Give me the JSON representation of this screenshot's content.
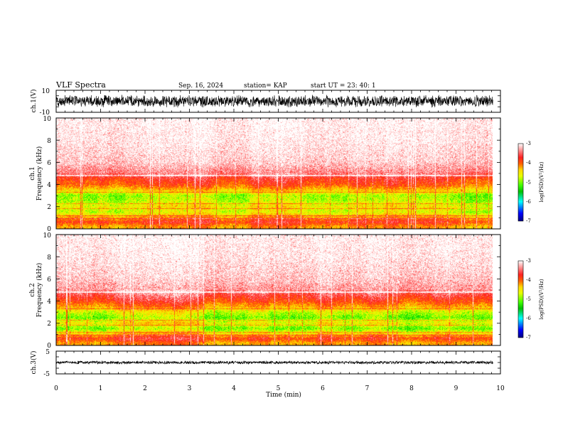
{
  "header": {
    "title": "VLF Spectra",
    "date": "Sep. 16, 2024",
    "station": "station= KAP",
    "start": "start  UT =  23: 40: 1"
  },
  "colors": {
    "spectrum": [
      "#ffffff",
      "#ff9a9a",
      "#ff2020",
      "#ff6000",
      "#ffd800",
      "#e8ff00",
      "#40ff00",
      "#00c000",
      "#00ffff",
      "#0000ff",
      "#000080"
    ],
    "waveform": "#000000"
  },
  "chart_data": [
    {
      "type": "line",
      "panel": "ch1-waveform",
      "ylabel": "ch.1(V)",
      "ylim": [
        -10,
        10
      ],
      "yticks": [
        {
          "value": 10,
          "label": "10"
        },
        {
          "value": -10,
          "label": "-10"
        }
      ],
      "xlim": [
        0,
        10
      ],
      "amplitude_range": [
        -6,
        6
      ]
    },
    {
      "type": "heatmap",
      "panel": "ch1-spectrogram",
      "ylabel_line1": "ch.1",
      "ylabel_line2": "Frequency  (kHz)",
      "ylim": [
        0,
        10
      ],
      "yticks": [
        {
          "value": 0,
          "label": "0"
        },
        {
          "value": 2,
          "label": "2"
        },
        {
          "value": 4,
          "label": "4"
        },
        {
          "value": 6,
          "label": "6"
        },
        {
          "value": 8,
          "label": "8"
        },
        {
          "value": 10,
          "label": "10"
        }
      ],
      "colorbar": {
        "label": "log(PSD)(V²/Hz)",
        "range": [
          -7,
          -3
        ],
        "ticks": [
          {
            "value": -3,
            "label": "-3"
          },
          {
            "value": -4,
            "label": "-4"
          },
          {
            "value": -5,
            "label": "-5"
          },
          {
            "value": -6,
            "label": "-6"
          },
          {
            "value": -7,
            "label": "-7"
          }
        ]
      },
      "profile": [
        {
          "f": 0.2,
          "psd": -4.4
        },
        {
          "f": 0.6,
          "psd": -3.9
        },
        {
          "f": 1.0,
          "psd": -4.4
        },
        {
          "f": 1.5,
          "psd": -5.0
        },
        {
          "f": 2.0,
          "psd": -4.8
        },
        {
          "f": 2.5,
          "psd": -5.1
        },
        {
          "f": 3.0,
          "psd": -5.2
        },
        {
          "f": 3.5,
          "psd": -4.6
        },
        {
          "f": 4.0,
          "psd": -4.1
        },
        {
          "f": 4.5,
          "psd": -3.9
        },
        {
          "f": 5.0,
          "psd": -3.5
        },
        {
          "f": 6.0,
          "psd": -3.2
        },
        {
          "f": 8.0,
          "psd": -3.05
        },
        {
          "f": 10.0,
          "psd": -3.0
        }
      ]
    },
    {
      "type": "heatmap",
      "panel": "ch2-spectrogram",
      "ylabel_line1": "ch.2",
      "ylabel_line2": "Frequency  (kHz)",
      "ylim": [
        0,
        10
      ],
      "yticks": [
        {
          "value": 0,
          "label": "0"
        },
        {
          "value": 2,
          "label": "2"
        },
        {
          "value": 4,
          "label": "4"
        },
        {
          "value": 6,
          "label": "6"
        },
        {
          "value": 8,
          "label": "8"
        },
        {
          "value": 10,
          "label": "10"
        }
      ],
      "colorbar": {
        "label": "log(PSD)(V²/Hz)",
        "range": [
          -7,
          -3
        ],
        "ticks": [
          {
            "value": -3,
            "label": "-3"
          },
          {
            "value": -4,
            "label": "-4"
          },
          {
            "value": -5,
            "label": "-5"
          },
          {
            "value": -6,
            "label": "-6"
          },
          {
            "value": -7,
            "label": "-7"
          }
        ]
      },
      "profile": [
        {
          "f": 0.2,
          "psd": -4.4
        },
        {
          "f": 0.6,
          "psd": -3.9
        },
        {
          "f": 1.0,
          "psd": -4.6
        },
        {
          "f": 1.5,
          "psd": -5.3
        },
        {
          "f": 2.0,
          "psd": -4.8
        },
        {
          "f": 2.5,
          "psd": -5.3
        },
        {
          "f": 3.0,
          "psd": -5.0
        },
        {
          "f": 3.5,
          "psd": -4.4
        },
        {
          "f": 4.0,
          "psd": -4.0
        },
        {
          "f": 4.5,
          "psd": -3.7
        },
        {
          "f": 5.0,
          "psd": -3.4
        },
        {
          "f": 6.0,
          "psd": -3.2
        },
        {
          "f": 8.0,
          "psd": -3.05
        },
        {
          "f": 10.0,
          "psd": -3.0
        }
      ]
    },
    {
      "type": "line",
      "panel": "ch3-waveform",
      "ylabel": "ch.3(V)",
      "ylim": [
        -5,
        5
      ],
      "yticks": [
        {
          "value": 5,
          "label": "5"
        },
        {
          "value": -5,
          "label": "-5"
        }
      ],
      "xlim": [
        0,
        10
      ],
      "amplitude_range": [
        -0.8,
        0.8
      ]
    }
  ],
  "xaxis": {
    "label": "Time  (min)",
    "range": [
      0,
      10
    ],
    "ticks": [
      {
        "value": 0,
        "label": "0"
      },
      {
        "value": 1,
        "label": "1"
      },
      {
        "value": 2,
        "label": "2"
      },
      {
        "value": 3,
        "label": "3"
      },
      {
        "value": 4,
        "label": "4"
      },
      {
        "value": 5,
        "label": "5"
      },
      {
        "value": 6,
        "label": "6"
      },
      {
        "value": 7,
        "label": "7"
      },
      {
        "value": 8,
        "label": "8"
      },
      {
        "value": 9,
        "label": "9"
      },
      {
        "value": 10,
        "label": "10"
      }
    ],
    "data_end": 9.83
  }
}
